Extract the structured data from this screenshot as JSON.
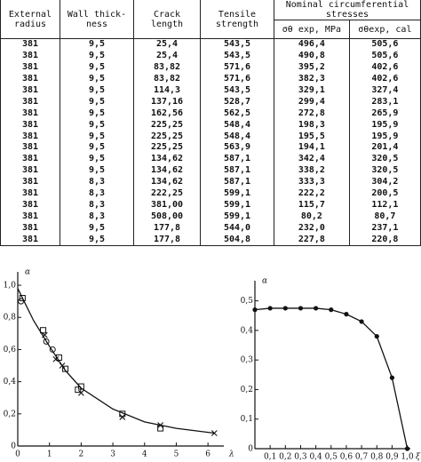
{
  "table": {
    "headers": [
      "External radius",
      "Wall thick-ness",
      "Crack length",
      "Tensile strength",
      "Nominal circumferential stresses"
    ],
    "subheaders": [
      "σθ exp, MPa",
      "σθexp, cal"
    ],
    "rows": [
      [
        "381",
        "9,5",
        "25,4",
        "543,5",
        "496,4",
        "505,6"
      ],
      [
        "381",
        "9,5",
        "25,4",
        "543,5",
        "490,8",
        "505,6"
      ],
      [
        "381",
        "9,5",
        "83,82",
        "571,6",
        "395,2",
        "402,6"
      ],
      [
        "381",
        "9,5",
        "83,82",
        "571,6",
        "382,3",
        "402,6"
      ],
      [
        "381",
        "9,5",
        "114,3",
        "543,5",
        "329,1",
        "327,4"
      ],
      [
        "381",
        "9,5",
        "137,16",
        "528,7",
        "299,4",
        "283,1"
      ],
      [
        "381",
        "9,5",
        "162,56",
        "562,5",
        "272,8",
        "265,9"
      ],
      [
        "381",
        "9,5",
        "225,25",
        "548,4",
        "198,3",
        "195,9"
      ],
      [
        "381",
        "9,5",
        "225,25",
        "548,4",
        "195,5",
        "195,9"
      ],
      [
        "381",
        "9,5",
        "225,25",
        "563,9",
        "194,1",
        "201,4"
      ],
      [
        "381",
        "9,5",
        "134,62",
        "587,1",
        "342,4",
        "320,5"
      ],
      [
        "381",
        "9,5",
        "134,62",
        "587,1",
        "338,2",
        "320,5"
      ],
      [
        "381",
        "8,3",
        "134,62",
        "587,1",
        "333,3",
        "304,2"
      ],
      [
        "381",
        "8,3",
        "222,25",
        "599,1",
        "222,2",
        "200,5"
      ],
      [
        "381",
        "8,3",
        "381,00",
        "599,1",
        "115,7",
        "112,1"
      ],
      [
        "381",
        "8,3",
        "508,00",
        "599,1",
        "80,2",
        "80,7"
      ],
      [
        "381",
        "9,5",
        "177,8",
        "544,0",
        "232,0",
        "237,1"
      ],
      [
        "381",
        "9,5",
        "177,8",
        "504,8",
        "227,8",
        "220,8"
      ]
    ]
  },
  "chart_data": [
    {
      "type": "scatter",
      "ylabel": "α",
      "xlabel": "λ",
      "color": "#111",
      "xlim": [
        0,
        6.5
      ],
      "ylim": [
        0,
        1.05
      ],
      "xticks": [
        0,
        1,
        2,
        3,
        4,
        5,
        6
      ],
      "yticks": [
        0,
        {
          "value": 0.2,
          "label": "0,2"
        },
        {
          "value": 0.4,
          "label": "0,4"
        },
        {
          "value": 0.6,
          "label": "0,6"
        },
        {
          "value": 0.8,
          "label": "0,8"
        },
        {
          "value": 1.0,
          "label": "1,0"
        }
      ],
      "series": [
        {
          "marker": "none",
          "x": [
            0,
            0.5,
            1,
            1.5,
            2,
            3,
            4,
            5,
            6.2
          ],
          "values": [
            0.98,
            0.78,
            0.62,
            0.47,
            0.36,
            0.23,
            0.15,
            0.11,
            0.08
          ]
        },
        {
          "marker": "circle",
          "x": [
            0.1,
            0.9,
            1.1
          ],
          "values": [
            0.9,
            0.65,
            0.6
          ]
        },
        {
          "marker": "square",
          "x": [
            0.15,
            0.8,
            1.3,
            1.5,
            1.9,
            2.0,
            3.3,
            4.5
          ],
          "values": [
            0.92,
            0.72,
            0.55,
            0.48,
            0.35,
            0.37,
            0.2,
            0.11
          ]
        },
        {
          "marker": "cross",
          "x": [
            0.85,
            1.2,
            1.4,
            2.0,
            3.3,
            4.5,
            6.2
          ],
          "values": [
            0.69,
            0.54,
            0.5,
            0.33,
            0.18,
            0.13,
            0.08
          ]
        }
      ]
    },
    {
      "type": "line",
      "ylabel": "α",
      "xlabel": "ξ",
      "color": "#111",
      "xlim": [
        0,
        1.02
      ],
      "ylim": [
        0,
        0.55
      ],
      "xticks": [
        {
          "value": 0.1,
          "label": "0,1"
        },
        {
          "value": 0.2,
          "label": "0,2"
        },
        {
          "value": 0.3,
          "label": "0,3"
        },
        {
          "value": 0.4,
          "label": "0,4"
        },
        {
          "value": 0.5,
          "label": "0,5"
        },
        {
          "value": 0.6,
          "label": "0,6"
        },
        {
          "value": 0.7,
          "label": "0,7"
        },
        {
          "value": 0.8,
          "label": "0,8"
        },
        {
          "value": 0.9,
          "label": "0,9"
        },
        {
          "value": 1.0,
          "label": "1,0"
        }
      ],
      "yticks": [
        0,
        {
          "value": 0.1,
          "label": "0,1"
        },
        {
          "value": 0.2,
          "label": "0,2"
        },
        {
          "value": 0.3,
          "label": "0,3"
        },
        {
          "value": 0.4,
          "label": "0,4"
        },
        {
          "value": 0.5,
          "label": "0,5"
        }
      ],
      "series": [
        {
          "marker": "dot",
          "x": [
            0,
            0.1,
            0.2,
            0.3,
            0.4,
            0.5,
            0.6,
            0.7,
            0.8,
            0.9,
            1.0
          ],
          "values": [
            0.47,
            0.475,
            0.475,
            0.475,
            0.475,
            0.47,
            0.455,
            0.43,
            0.38,
            0.24,
            0
          ]
        }
      ]
    }
  ]
}
